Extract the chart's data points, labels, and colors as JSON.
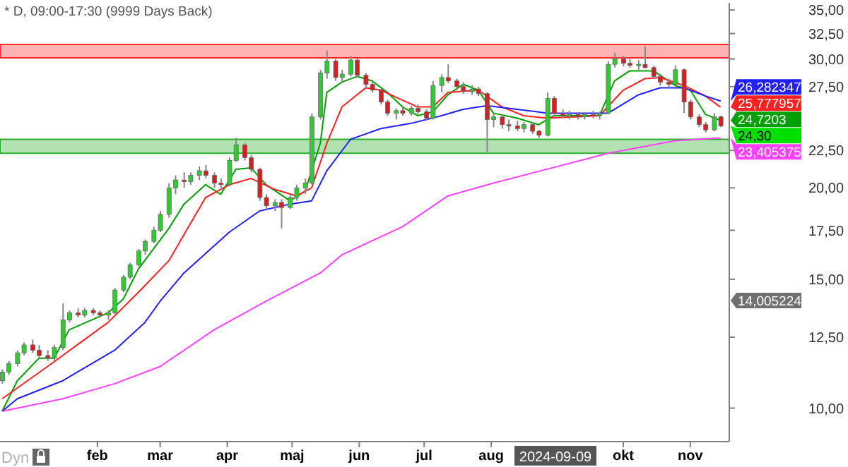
{
  "chart_data": {
    "type": "candlestick",
    "title": "* D, 09:00-17:30 (9999 Days Back)",
    "log": true,
    "value_labels": [
      null,
      null,
      null,
      null,
      null,
      null,
      null,
      null,
      null,
      null,
      null,
      null,
      null,
      null,
      null,
      null,
      null,
      null,
      null,
      null,
      null,
      null,
      null,
      null,
      null,
      null,
      null,
      null,
      null,
      null,
      null,
      null,
      null,
      null,
      null,
      null,
      null,
      null,
      null,
      null,
      null,
      null,
      null,
      null,
      null,
      null,
      null,
      null,
      null,
      null,
      null,
      null,
      null,
      null,
      null,
      null,
      null,
      null,
      null,
      null,
      null,
      null,
      null,
      null,
      null,
      null,
      null,
      null,
      null,
      null,
      null,
      null,
      null,
      null,
      null,
      null,
      null,
      null,
      null,
      null,
      null,
      null,
      null,
      null,
      null,
      null,
      null,
      null,
      null,
      null,
      null,
      null,
      null,
      null,
      null,
      "24,30"
    ],
    "x": [
      "2023-12-19",
      "2023-12-22",
      "2023-12-26",
      "2023-12-29",
      "2024-01-02",
      "2024-01-05",
      "2024-01-09",
      "2024-01-12",
      "2024-01-16",
      "2024-01-19",
      "2024-01-23",
      "2024-01-26",
      "2024-01-30",
      "2024-02-02",
      "2024-02-06",
      "2024-02-09",
      "2024-02-13",
      "2024-02-16",
      "2024-02-20",
      "2024-02-23",
      "2024-02-27",
      "2024-03-01",
      "2024-03-05",
      "2024-03-08",
      "2024-03-12",
      "2024-03-15",
      "2024-03-19",
      "2024-03-22",
      "2024-03-26",
      "2024-03-29",
      "2024-04-02",
      "2024-04-05",
      "2024-04-09",
      "2024-04-12",
      "2024-04-16",
      "2024-04-19",
      "2024-04-23",
      "2024-04-26",
      "2024-04-30",
      "2024-05-03",
      "2024-05-07",
      "2024-05-10",
      "2024-05-14",
      "2024-05-17",
      "2024-05-21",
      "2024-05-24",
      "2024-05-28",
      "2024-05-31",
      "2024-06-04",
      "2024-06-07",
      "2024-06-11",
      "2024-06-14",
      "2024-06-18",
      "2024-06-21",
      "2024-06-25",
      "2024-06-28",
      "2024-07-02",
      "2024-07-05",
      "2024-07-09",
      "2024-07-12",
      "2024-07-16",
      "2024-07-19",
      "2024-07-23",
      "2024-07-26",
      "2024-07-30",
      "2024-08-02",
      "2024-08-06",
      "2024-08-09",
      "2024-08-13",
      "2024-08-16",
      "2024-08-20",
      "2024-08-23",
      "2024-08-27",
      "2024-08-30",
      "2024-09-03",
      "2024-09-06",
      "2024-09-10",
      "2024-09-13",
      "2024-09-17",
      "2024-09-20",
      "2024-09-24",
      "2024-09-27",
      "2024-10-01",
      "2024-10-04",
      "2024-10-08",
      "2024-10-11",
      "2024-10-15",
      "2024-10-18",
      "2024-10-22",
      "2024-10-25",
      "2024-10-29",
      "2024-11-01",
      "2024-11-05",
      "2024-11-08",
      "2024-11-12",
      "2024-11-15"
    ],
    "ohlc": [
      [
        10.9,
        11.3,
        10.8,
        11.2
      ],
      [
        11.2,
        11.6,
        11.1,
        11.5
      ],
      [
        11.5,
        12.0,
        11.4,
        11.9
      ],
      [
        11.9,
        12.3,
        11.8,
        12.2
      ],
      [
        12.2,
        12.4,
        11.9,
        12.0
      ],
      [
        12.0,
        12.2,
        11.7,
        11.8
      ],
      [
        11.8,
        12.0,
        11.6,
        11.7
      ],
      [
        11.7,
        12.2,
        11.6,
        12.1
      ],
      [
        12.1,
        13.9,
        12.0,
        13.2
      ],
      [
        13.2,
        13.6,
        13.1,
        13.5
      ],
      [
        13.5,
        13.7,
        13.3,
        13.4
      ],
      [
        13.4,
        13.7,
        13.3,
        13.6
      ],
      [
        13.6,
        13.7,
        13.4,
        13.5
      ],
      [
        13.5,
        13.6,
        13.3,
        13.4
      ],
      [
        13.4,
        13.6,
        13.2,
        13.5
      ],
      [
        13.5,
        14.6,
        13.4,
        14.5
      ],
      [
        14.5,
        15.2,
        14.4,
        15.1
      ],
      [
        15.1,
        15.8,
        15.0,
        15.7
      ],
      [
        15.7,
        16.5,
        15.6,
        16.4
      ],
      [
        16.4,
        17.0,
        16.2,
        16.9
      ],
      [
        16.9,
        17.7,
        16.8,
        17.5
      ],
      [
        17.5,
        18.6,
        17.4,
        18.4
      ],
      [
        18.4,
        20.3,
        18.2,
        20.0
      ],
      [
        20.0,
        20.8,
        19.6,
        20.5
      ],
      [
        20.5,
        21.0,
        20.0,
        20.4
      ],
      [
        20.4,
        21.0,
        20.2,
        20.8
      ],
      [
        20.8,
        21.4,
        20.5,
        21.1
      ],
      [
        21.1,
        21.5,
        20.6,
        20.8
      ],
      [
        20.8,
        21.0,
        20.0,
        20.3
      ],
      [
        20.3,
        20.6,
        19.9,
        20.2
      ],
      [
        20.2,
        22.0,
        20.1,
        21.8
      ],
      [
        21.8,
        23.4,
        21.7,
        22.9
      ],
      [
        22.9,
        23.0,
        21.8,
        22.0
      ],
      [
        22.0,
        22.2,
        21.0,
        21.2
      ],
      [
        21.2,
        21.3,
        19.2,
        19.4
      ],
      [
        19.4,
        19.6,
        18.7,
        18.9
      ],
      [
        18.9,
        19.3,
        18.6,
        19.1
      ],
      [
        19.1,
        19.3,
        17.6,
        18.8
      ],
      [
        18.8,
        19.6,
        18.7,
        19.4
      ],
      [
        19.4,
        20.2,
        19.2,
        20.0
      ],
      [
        20.0,
        20.6,
        19.6,
        20.3
      ],
      [
        20.3,
        25.3,
        20.2,
        25.0
      ],
      [
        25.0,
        29.0,
        24.8,
        28.7
      ],
      [
        28.7,
        30.8,
        28.2,
        29.8
      ],
      [
        29.8,
        30.0,
        28.0,
        28.3
      ],
      [
        28.3,
        29.0,
        27.8,
        28.6
      ],
      [
        28.6,
        30.3,
        28.4,
        29.9
      ],
      [
        29.9,
        30.1,
        28.3,
        28.5
      ],
      [
        28.5,
        28.7,
        27.4,
        27.7
      ],
      [
        27.7,
        27.9,
        27.0,
        27.2
      ],
      [
        27.2,
        27.3,
        26.0,
        26.2
      ],
      [
        26.2,
        26.4,
        25.1,
        25.3
      ],
      [
        25.3,
        25.7,
        24.8,
        25.5
      ],
      [
        25.5,
        25.9,
        25.1,
        25.3
      ],
      [
        25.3,
        25.9,
        25.1,
        25.7
      ],
      [
        25.7,
        26.0,
        25.2,
        25.4
      ],
      [
        25.4,
        25.6,
        24.7,
        24.9
      ],
      [
        24.9,
        28.0,
        24.8,
        27.6
      ],
      [
        27.6,
        28.6,
        27.0,
        28.3
      ],
      [
        28.3,
        29.5,
        27.8,
        28.0
      ],
      [
        28.0,
        28.2,
        27.2,
        27.5
      ],
      [
        27.5,
        27.9,
        26.9,
        27.1
      ],
      [
        27.1,
        27.6,
        26.8,
        27.3
      ],
      [
        27.3,
        27.5,
        26.7,
        26.9
      ],
      [
        26.9,
        27.0,
        22.4,
        24.8
      ],
      [
        24.8,
        25.3,
        24.2,
        25.0
      ],
      [
        25.0,
        25.2,
        24.1,
        24.4
      ],
      [
        24.4,
        24.8,
        23.9,
        24.3
      ],
      [
        24.3,
        24.7,
        23.9,
        24.1
      ],
      [
        24.1,
        24.6,
        23.8,
        24.4
      ],
      [
        24.4,
        24.6,
        23.7,
        23.9
      ],
      [
        23.9,
        24.0,
        23.4,
        23.6
      ],
      [
        23.6,
        27.0,
        23.5,
        26.5
      ],
      [
        26.5,
        26.7,
        25.0,
        25.3
      ],
      [
        25.3,
        25.6,
        24.9,
        25.1
      ],
      [
        25.1,
        25.5,
        24.8,
        25.2
      ],
      [
        25.2,
        25.4,
        24.8,
        25.0
      ],
      [
        25.0,
        25.4,
        24.8,
        25.2
      ],
      [
        25.2,
        25.5,
        24.9,
        25.1
      ],
      [
        25.1,
        25.4,
        24.8,
        25.3
      ],
      [
        25.3,
        29.8,
        25.2,
        29.5
      ],
      [
        29.5,
        30.6,
        29.2,
        30.0
      ],
      [
        30.0,
        30.3,
        29.3,
        29.6
      ],
      [
        29.6,
        30.0,
        29.2,
        29.4
      ],
      [
        29.4,
        29.9,
        29.0,
        29.5
      ],
      [
        29.5,
        31.2,
        29.1,
        29.2
      ],
      [
        29.2,
        29.4,
        28.2,
        28.4
      ],
      [
        28.4,
        28.6,
        27.6,
        27.9
      ],
      [
        27.9,
        28.2,
        27.4,
        27.7
      ],
      [
        27.7,
        29.4,
        27.6,
        29.0
      ],
      [
        29.0,
        29.1,
        25.3,
        26.2
      ],
      [
        26.2,
        26.4,
        24.8,
        25.0
      ],
      [
        25.0,
        25.2,
        24.2,
        24.4
      ],
      [
        24.4,
        24.6,
        23.8,
        24.0
      ],
      [
        24.0,
        25.3,
        23.9,
        25.0
      ],
      [
        25.0,
        25.1,
        24.2,
        24.3
      ]
    ],
    "colors": [
      "#2ecc2e",
      "#2ecc2e",
      "#2ecc2e",
      "#2ecc2e",
      "#d42020",
      "#d42020",
      "#d42020",
      "#2ecc2e",
      "#2ecc2e",
      "#2ecc2e",
      "#d42020",
      "#2ecc2e",
      "#d42020",
      "#d42020",
      "#2ecc2e",
      "#2ecc2e",
      "#2ecc2e",
      "#2ecc2e",
      "#2ecc2e",
      "#2ecc2e",
      "#2ecc2e",
      "#2ecc2e",
      "#2ecc2e",
      "#2ecc2e",
      "#d42020",
      "#2ecc2e",
      "#2ecc2e",
      "#d42020",
      "#d42020",
      "#d42020",
      "#2ecc2e",
      "#2ecc2e",
      "#d42020",
      "#d42020",
      "#d42020",
      "#d42020",
      "#2ecc2e",
      "#d42020",
      "#2ecc2e",
      "#2ecc2e",
      "#2ecc2e",
      "#2ecc2e",
      "#2ecc2e",
      "#2ecc2e",
      "#d42020",
      "#2ecc2e",
      "#2ecc2e",
      "#d42020",
      "#d42020",
      "#d42020",
      "#d42020",
      "#d42020",
      "#2ecc2e",
      "#d42020",
      "#2ecc2e",
      "#d42020",
      "#d42020",
      "#2ecc2e",
      "#2ecc2e",
      "#d42020",
      "#d42020",
      "#d42020",
      "#2ecc2e",
      "#d42020",
      "#d42020",
      "#2ecc2e",
      "#d42020",
      "#d42020",
      "#d42020",
      "#2ecc2e",
      "#d42020",
      "#d42020",
      "#2ecc2e",
      "#d42020",
      "#d42020",
      "#2ecc2e",
      "#d42020",
      "#2ecc2e",
      "#d42020",
      "#2ecc2e",
      "#2ecc2e",
      "#2ecc2e",
      "#d42020",
      "#d42020",
      "#2ecc2e",
      "#d42020",
      "#d42020",
      "#d42020",
      "#d42020",
      "#2ecc2e",
      "#d42020",
      "#d42020",
      "#d42020",
      "#d42020",
      "#2ecc2e",
      "#d42020"
    ],
    "series": [
      {
        "type": "line",
        "color": "#00a000",
        "x": [
          "2023-12-19",
          "2023-12-26",
          "2024-01-05",
          "2024-01-12",
          "2024-01-19",
          "2024-02-06",
          "2024-02-13",
          "2024-02-20",
          "2024-03-05",
          "2024-03-12",
          "2024-03-22",
          "2024-03-29",
          "2024-04-05",
          "2024-04-12",
          "2024-04-19",
          "2024-04-30",
          "2024-05-07",
          "2024-05-14",
          "2024-05-17",
          "2024-05-24",
          "2024-05-31",
          "2024-06-07",
          "2024-06-14",
          "2024-06-21",
          "2024-06-28",
          "2024-07-05",
          "2024-07-12",
          "2024-07-19",
          "2024-07-26",
          "2024-08-02",
          "2024-08-13",
          "2024-08-23",
          "2024-08-30",
          "2024-09-20",
          "2024-09-27",
          "2024-10-04",
          "2024-10-15",
          "2024-10-25",
          "2024-11-01",
          "2024-11-08",
          "2024-11-15"
        ],
        "values": [
          9.9,
          10.9,
          11.7,
          11.7,
          12.8,
          13.5,
          14.1,
          15.5,
          17.6,
          19.0,
          20.2,
          19.6,
          21.2,
          21.3,
          20.2,
          19.2,
          19.8,
          23.0,
          27.0,
          27.9,
          28.4,
          28.0,
          27.0,
          25.8,
          25.1,
          25.4,
          26.8,
          27.7,
          27.2,
          25.3,
          24.9,
          24.4,
          25.1,
          25.1,
          28.0,
          28.9,
          28.9,
          27.6,
          27.2,
          25.2,
          24.7203
        ],
        "value_labels": [
          null,
          null,
          null,
          null,
          null,
          null,
          null,
          null,
          null,
          null,
          null,
          null,
          null,
          null,
          null,
          null,
          null,
          null,
          null,
          null,
          null,
          null,
          null,
          null,
          null,
          null,
          null,
          null,
          null,
          null,
          null,
          null,
          null,
          null,
          null,
          null,
          null,
          null,
          null,
          null,
          "24,7203"
        ]
      },
      {
        "type": "line",
        "color": "#ff2020",
        "x": [
          "2023-12-19",
          "2024-01-09",
          "2024-02-06",
          "2024-02-20",
          "2024-03-05",
          "2024-03-22",
          "2024-04-02",
          "2024-04-12",
          "2024-04-23",
          "2024-05-03",
          "2024-05-10",
          "2024-05-17",
          "2024-05-24",
          "2024-06-04",
          "2024-06-11",
          "2024-06-18",
          "2024-06-28",
          "2024-07-05",
          "2024-07-12",
          "2024-07-26",
          "2024-08-06",
          "2024-08-16",
          "2024-08-27",
          "2024-09-20",
          "2024-10-01",
          "2024-10-11",
          "2024-10-18",
          "2024-10-29",
          "2024-11-08",
          "2024-11-15"
        ],
        "values": [
          10.3,
          11.4,
          13.1,
          14.4,
          15.9,
          19.4,
          20.2,
          20.6,
          19.9,
          19.5,
          20.0,
          23.0,
          25.8,
          27.4,
          27.2,
          26.6,
          25.8,
          25.8,
          27.0,
          27.2,
          25.8,
          25.1,
          24.9,
          25.1,
          27.2,
          28.2,
          28.3,
          27.6,
          26.7,
          25.777957
        ],
        "value_labels": [
          null,
          null,
          null,
          null,
          null,
          null,
          null,
          null,
          null,
          null,
          null,
          null,
          null,
          null,
          null,
          null,
          null,
          null,
          null,
          null,
          null,
          null,
          null,
          null,
          null,
          null,
          null,
          null,
          null,
          "25,777957"
        ]
      },
      {
        "type": "line",
        "color": "#2020ff",
        "x": [
          "2023-12-19",
          "2023-12-26",
          "2024-01-16",
          "2024-02-09",
          "2024-02-23",
          "2024-03-01",
          "2024-03-12",
          "2024-04-02",
          "2024-04-16",
          "2024-04-30",
          "2024-05-10",
          "2024-05-17",
          "2024-05-28",
          "2024-06-11",
          "2024-06-25",
          "2024-07-09",
          "2024-07-19",
          "2024-07-30",
          "2024-08-13",
          "2024-08-27",
          "2024-09-24",
          "2024-10-08",
          "2024-10-18",
          "2024-10-29",
          "2024-11-08",
          "2024-11-15"
        ],
        "values": [
          9.9,
          10.3,
          10.9,
          12.0,
          13.1,
          14.0,
          15.3,
          17.4,
          18.6,
          19.0,
          19.2,
          21.1,
          23.3,
          24.1,
          24.5,
          25.1,
          25.6,
          25.9,
          25.6,
          25.3,
          25.3,
          26.8,
          27.4,
          27.4,
          26.7,
          26.282347
        ],
        "value_labels": [
          null,
          null,
          null,
          null,
          null,
          null,
          null,
          null,
          null,
          null,
          null,
          null,
          null,
          null,
          null,
          null,
          null,
          null,
          null,
          null,
          null,
          null,
          null,
          null,
          null,
          "26,282347"
        ]
      },
      {
        "type": "line",
        "color": "#ff40ff",
        "x": [
          "2023-12-19",
          "2024-01-16",
          "2024-02-09",
          "2024-03-01",
          "2024-03-26",
          "2024-04-19",
          "2024-05-14",
          "2024-05-24",
          "2024-06-21",
          "2024-07-12",
          "2024-08-02",
          "2024-09-24",
          "2024-10-25",
          "2024-11-15"
        ],
        "values": [
          9.9,
          10.3,
          10.8,
          11.4,
          12.8,
          14.0,
          15.3,
          16.2,
          17.7,
          19.5,
          20.3,
          22.3,
          23.2,
          23.405375
        ],
        "value_labels": [
          null,
          null,
          null,
          null,
          null,
          null,
          null,
          null,
          null,
          null,
          null,
          null,
          null,
          "23,405375"
        ]
      }
    ],
    "bands": [
      {
        "axis": "y",
        "from": 30.1,
        "to": 31.4,
        "color": "#ff0000"
      },
      {
        "axis": "y",
        "from": 22.3,
        "to": 23.3,
        "color": "#00a000"
      }
    ],
    "xlim": [
      "2023-12-18",
      "2024-11-19"
    ],
    "xticks": [
      {
        "value": "2024-02-01",
        "label": "feb"
      },
      {
        "value": "2024-03-01",
        "label": "mar"
      },
      {
        "value": "2024-04-01",
        "label": "apr"
      },
      {
        "value": "2024-05-01",
        "label": "maj"
      },
      {
        "value": "2024-06-01",
        "label": "jun"
      },
      {
        "value": "2024-07-01",
        "label": "jul"
      },
      {
        "value": "2024-08-01",
        "label": "aug"
      },
      {
        "value": "2024-10-01",
        "label": "okt"
      },
      {
        "value": "2024-11-01",
        "label": "nov"
      }
    ],
    "ylim": [
      9.0,
      35.8
    ],
    "yticks": [
      {
        "value": 10,
        "label": "10,00"
      },
      {
        "value": 12.5,
        "label": "12,50"
      },
      {
        "value": 15,
        "label": "15,00"
      },
      {
        "value": 17.5,
        "label": "17,50"
      },
      {
        "value": 20,
        "label": "20,00"
      },
      {
        "value": 22.5,
        "label": "22,50"
      },
      {
        "value": 27.5,
        "label": "27,50"
      },
      {
        "value": 30,
        "label": "30,00"
      },
      {
        "value": 32.5,
        "label": "32,50"
      },
      {
        "value": 35,
        "label": "35,00"
      }
    ],
    "annotations": [
      "Dyn",
      "2024-09-09",
      "14,005224"
    ]
  }
}
